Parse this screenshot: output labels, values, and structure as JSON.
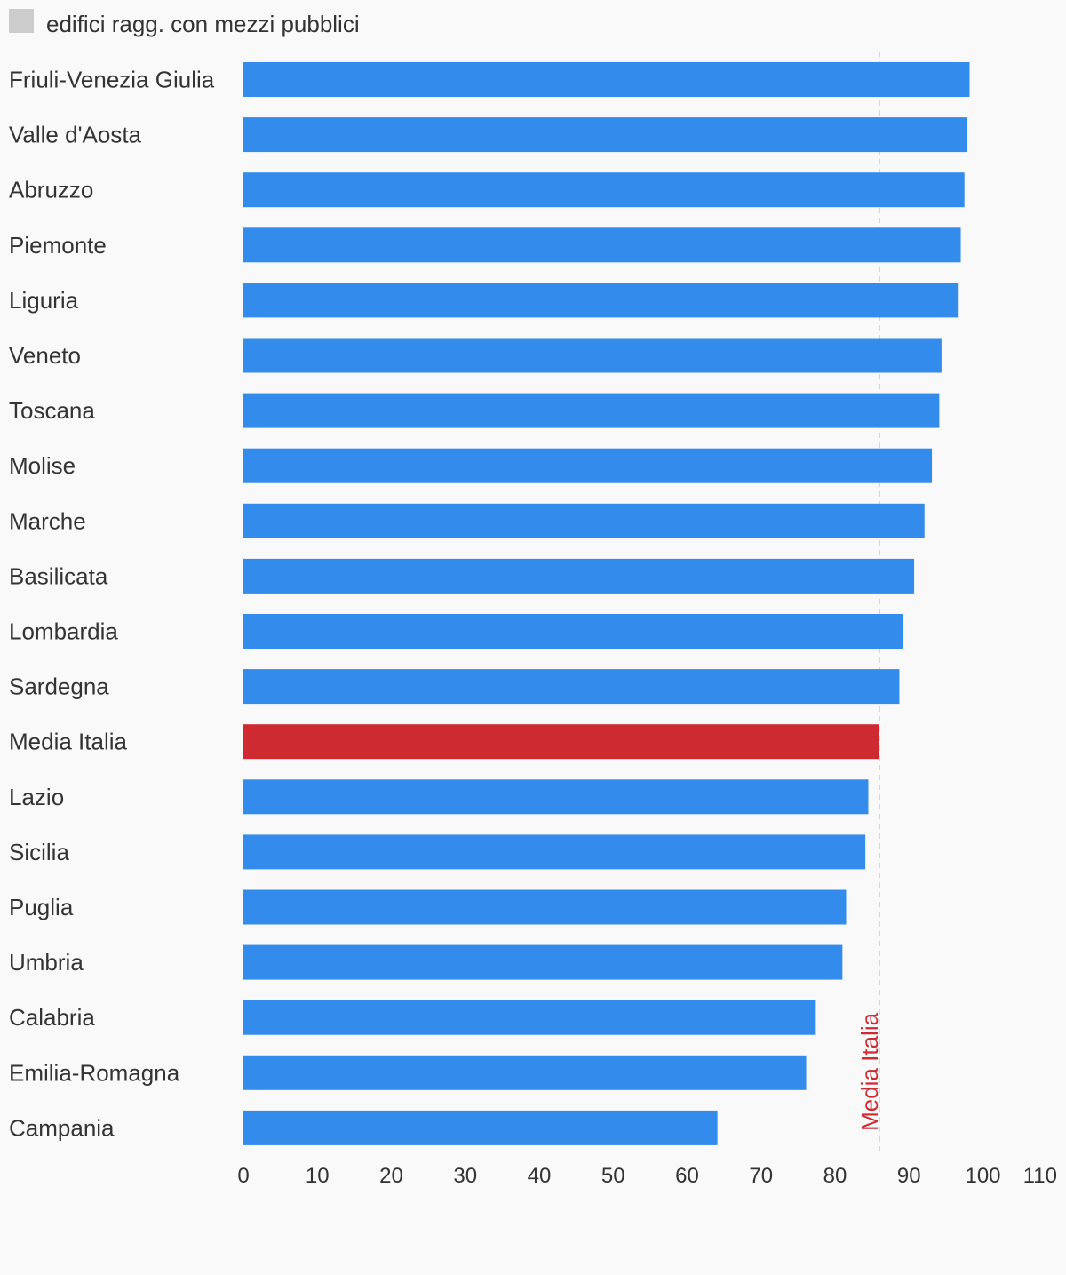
{
  "chart_data": {
    "type": "bar",
    "orientation": "horizontal",
    "legend": {
      "label": "edifici ragg. con mezzi pubblici",
      "color": "#cccccc",
      "placement": "top-left"
    },
    "categories": [
      "Friuli-Venezia Giulia",
      "Valle d'Aosta",
      "Abruzzo",
      "Piemonte",
      "Liguria",
      "Veneto",
      "Toscana",
      "Molise",
      "Marche",
      "Basilicata",
      "Lombardia",
      "Sardegna",
      "Media Italia",
      "Lazio",
      "Sicilia",
      "Puglia",
      "Umbria",
      "Calabria",
      "Emilia-Romagna",
      "Campania"
    ],
    "values": [
      98.2,
      97.8,
      97.5,
      97.0,
      96.6,
      94.4,
      94.1,
      93.1,
      92.1,
      90.7,
      89.2,
      88.7,
      86.0,
      84.5,
      84.1,
      81.5,
      81.0,
      77.4,
      76.1,
      64.1
    ],
    "bar_color": "#338beb",
    "highlight_category": "Media Italia",
    "highlight_color": "#cd2a31",
    "reference_line": {
      "value": 86.0,
      "label": "Media Italia",
      "color": "#cd2a31"
    },
    "xlim": [
      0,
      110
    ],
    "xticks": [
      0,
      10,
      20,
      30,
      40,
      50,
      60,
      70,
      80,
      90,
      100,
      110
    ],
    "xlabel": "",
    "ylabel": "",
    "title": "",
    "grid": false
  }
}
